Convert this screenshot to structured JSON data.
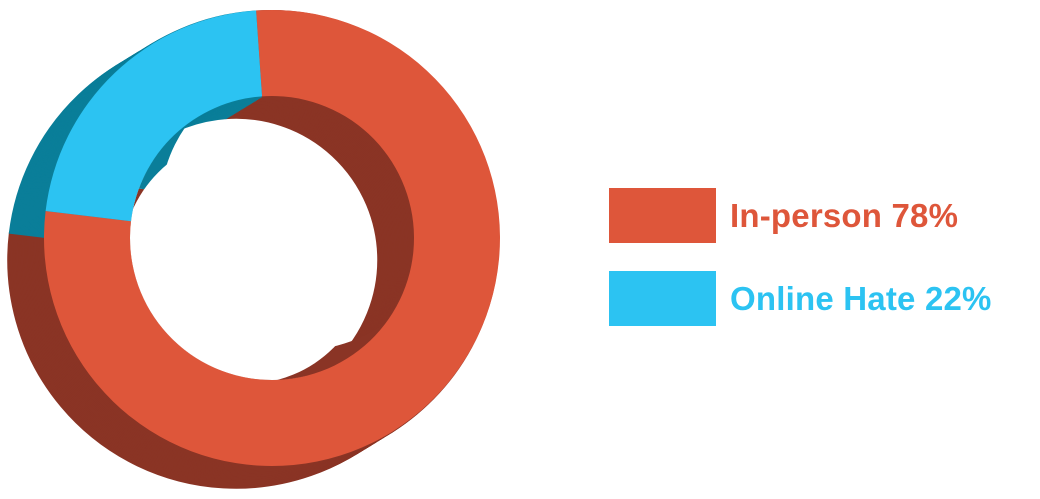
{
  "chart_data": {
    "type": "pie",
    "style": "3d-donut",
    "title": "",
    "legend_position": "right",
    "slices": [
      {
        "label": "In-person",
        "value": 78,
        "display": "78%",
        "legend_text": "In-person 78%",
        "color": "#de563a",
        "side_color": "#8a3425",
        "inner_color": "#8a3425"
      },
      {
        "label": "Online Hate",
        "value": 22,
        "display": "22%",
        "legend_text": "Online Hate 22%",
        "color": "#2cc3f2",
        "side_color": "#0a7e99",
        "inner_color": "#0a7e99"
      }
    ]
  }
}
